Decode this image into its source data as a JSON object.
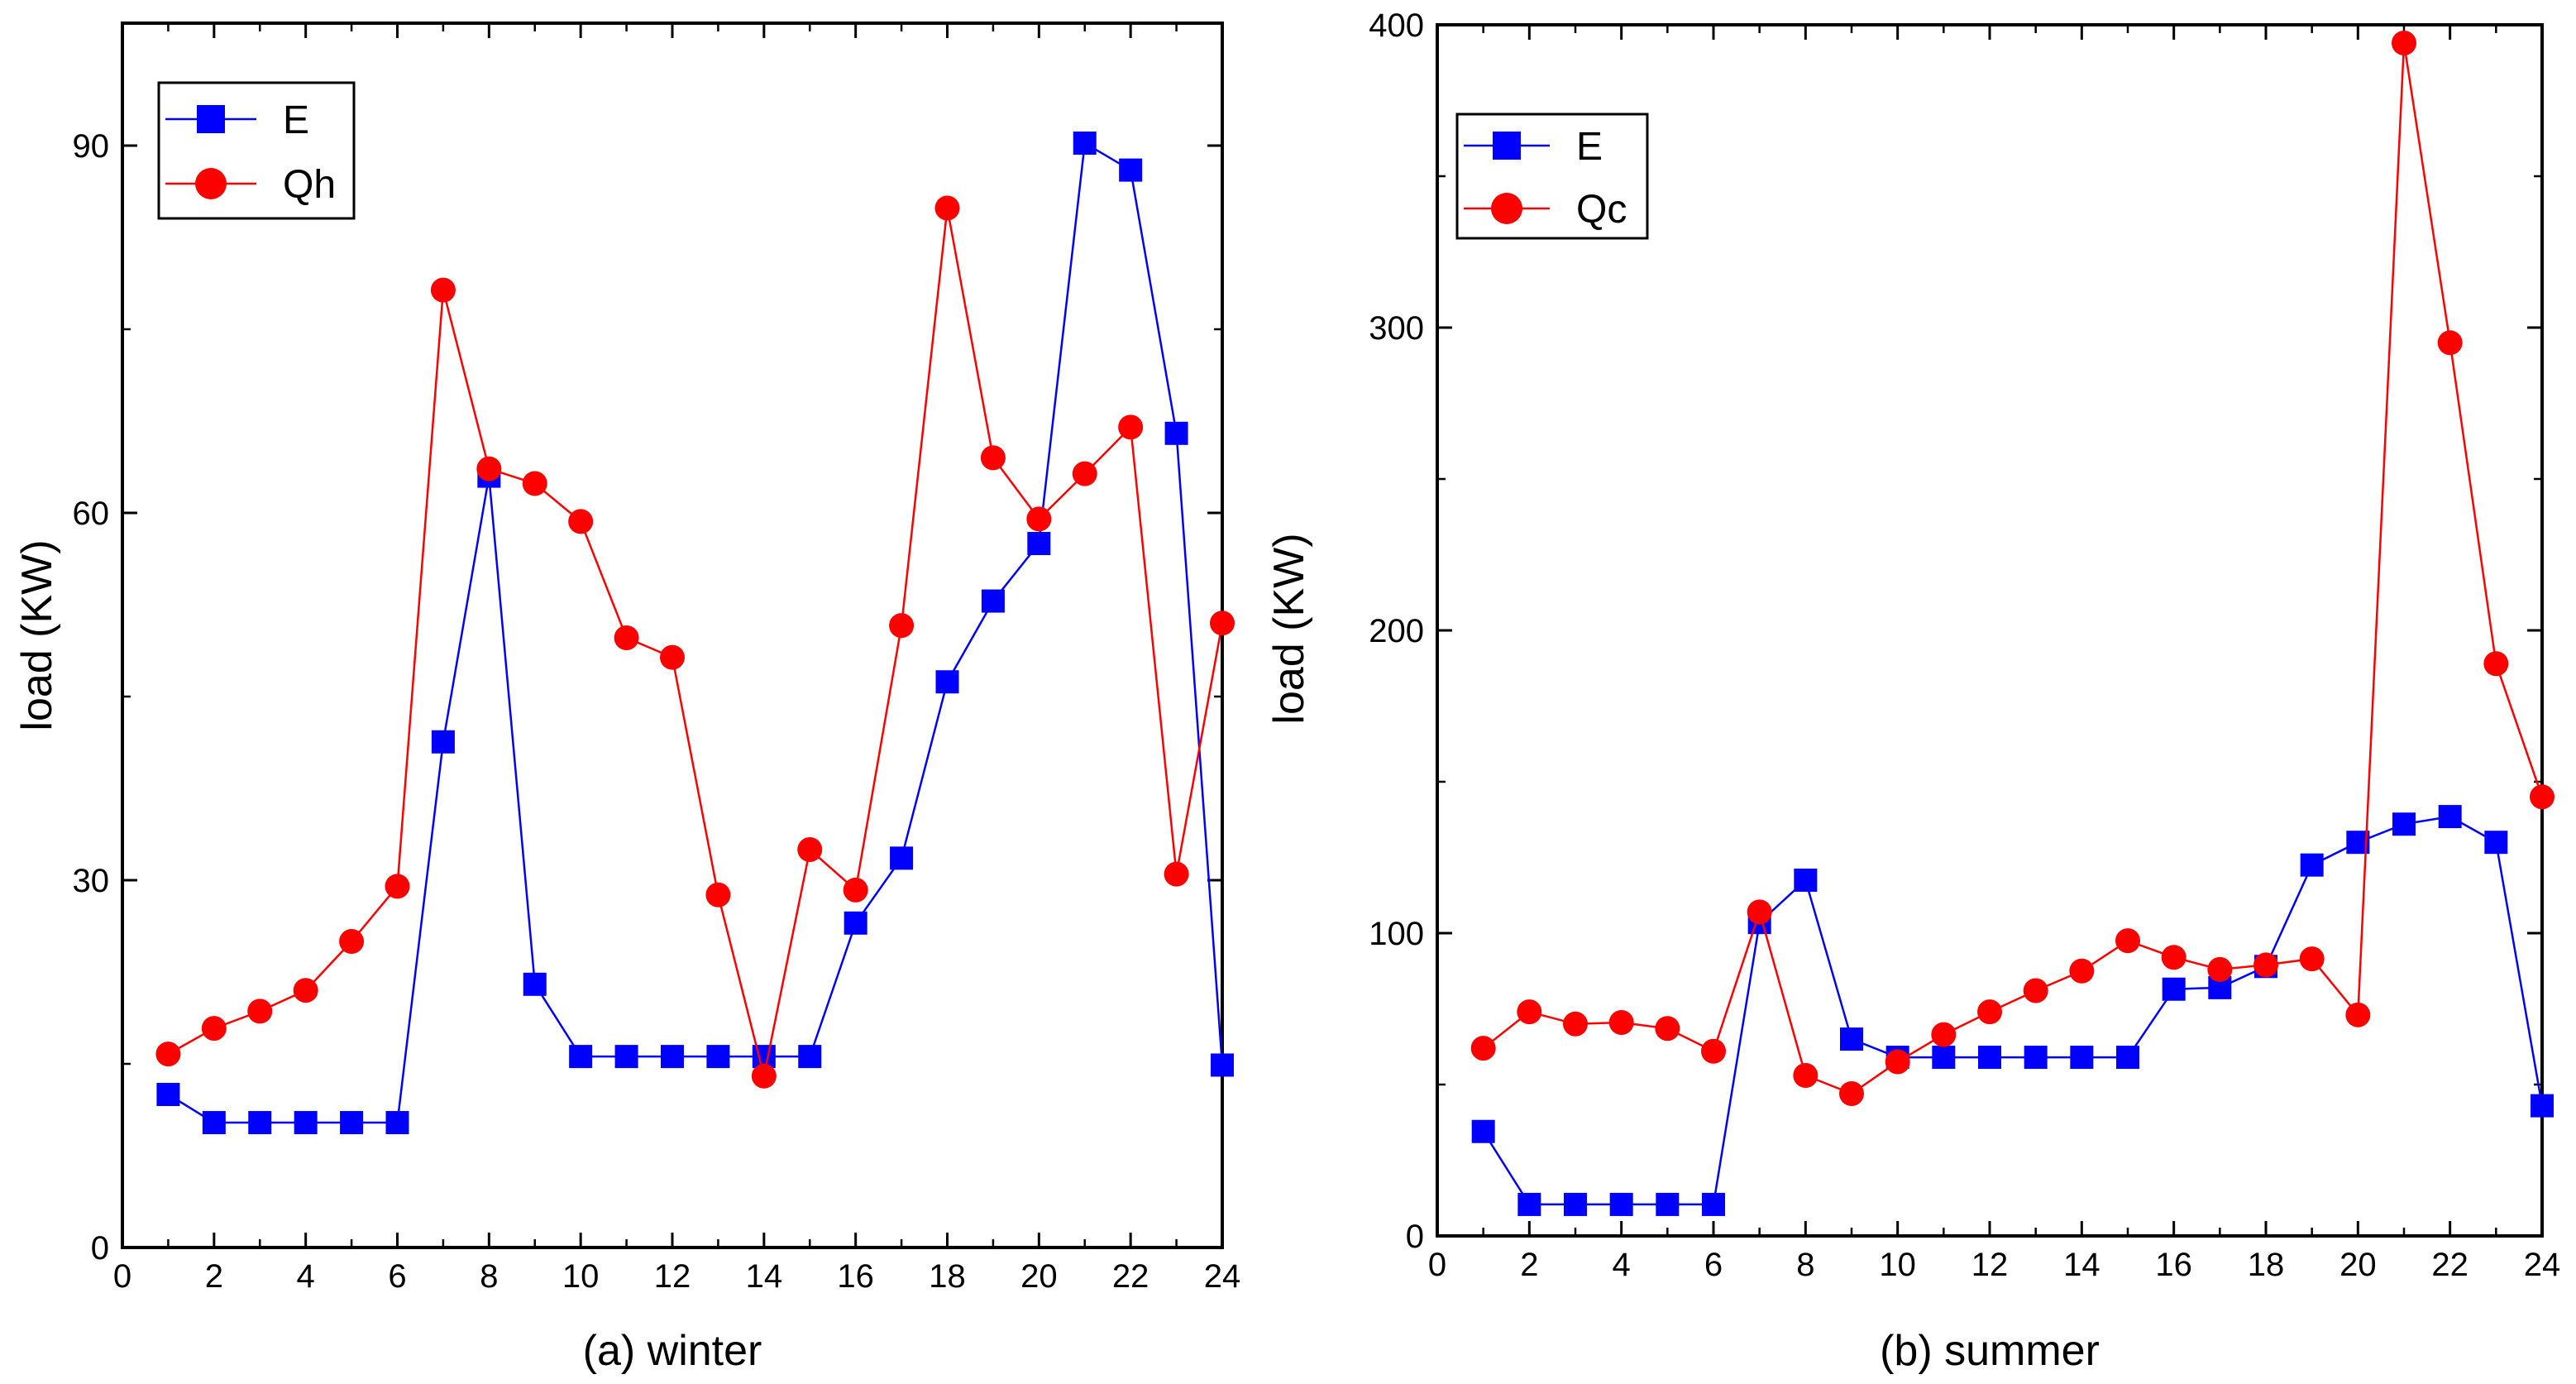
{
  "colors": {
    "series_E": "#0000ff",
    "series_Q": "#ff0000",
    "axis": "#000000"
  },
  "chart_data": [
    {
      "type": "line",
      "title": "(a) winter",
      "xlabel": "(a) winter",
      "ylabel": "load (KW)",
      "xlim": [
        0,
        24
      ],
      "ylim": [
        0,
        100
      ],
      "xticks": [
        0,
        2,
        4,
        6,
        8,
        10,
        12,
        14,
        16,
        18,
        20,
        22,
        24
      ],
      "yticks": [
        0,
        30,
        60,
        90
      ],
      "legend_position": "top-left",
      "x": [
        1,
        2,
        3,
        4,
        5,
        6,
        7,
        8,
        9,
        10,
        11,
        12,
        13,
        14,
        15,
        16,
        17,
        18,
        19,
        20,
        21,
        22,
        23,
        24
      ],
      "series": [
        {
          "name": "E",
          "marker": "square",
          "color": "#0000ff",
          "values": [
            12.5,
            10.2,
            10.2,
            10.2,
            10.2,
            10.2,
            41.3,
            63.0,
            21.5,
            15.6,
            15.6,
            15.6,
            15.6,
            15.6,
            15.6,
            26.5,
            31.8,
            46.2,
            52.8,
            57.5,
            90.2,
            88.0,
            66.5,
            14.9
          ]
        },
        {
          "name": "Qh",
          "marker": "circle",
          "color": "#ff0000",
          "values": [
            15.8,
            17.9,
            19.3,
            21.0,
            25.0,
            29.5,
            78.2,
            63.6,
            62.4,
            59.3,
            49.8,
            48.2,
            28.8,
            14.0,
            32.5,
            29.2,
            50.8,
            84.9,
            64.5,
            59.5,
            63.2,
            67.0,
            30.5,
            51.0
          ]
        }
      ]
    },
    {
      "type": "line",
      "title": "(b) summer",
      "xlabel": "(b) summer",
      "ylabel": "load (KW)",
      "xlim": [
        0,
        24
      ],
      "ylim": [
        0,
        400
      ],
      "xticks": [
        0,
        2,
        4,
        6,
        8,
        10,
        12,
        14,
        16,
        18,
        20,
        22,
        24
      ],
      "yticks": [
        0,
        100,
        200,
        300,
        400
      ],
      "legend_position": "top-left",
      "x": [
        1,
        2,
        3,
        4,
        5,
        6,
        7,
        8,
        9,
        10,
        11,
        12,
        13,
        14,
        15,
        16,
        17,
        18,
        19,
        20,
        21,
        22,
        23,
        24
      ],
      "series": [
        {
          "name": "E",
          "marker": "square",
          "color": "#0000ff",
          "values": [
            34.5,
            10.4,
            10.4,
            10.4,
            10.4,
            10.4,
            103.5,
            117.5,
            65.0,
            59.0,
            59.0,
            59.0,
            59.0,
            59.0,
            59.0,
            81.5,
            82.0,
            89.0,
            122.5,
            130.0,
            136.0,
            138.5,
            130.0,
            43.0
          ]
        },
        {
          "name": "Qc",
          "marker": "circle",
          "color": "#ff0000",
          "values": [
            62.0,
            74.0,
            70.0,
            70.5,
            68.5,
            61.0,
            107.0,
            53.0,
            47.0,
            57.5,
            66.5,
            74.0,
            81.0,
            87.5,
            97.5,
            92.0,
            88.0,
            89.5,
            91.5,
            73.0,
            394.0,
            295.0,
            189.0,
            145.0
          ]
        }
      ]
    }
  ]
}
